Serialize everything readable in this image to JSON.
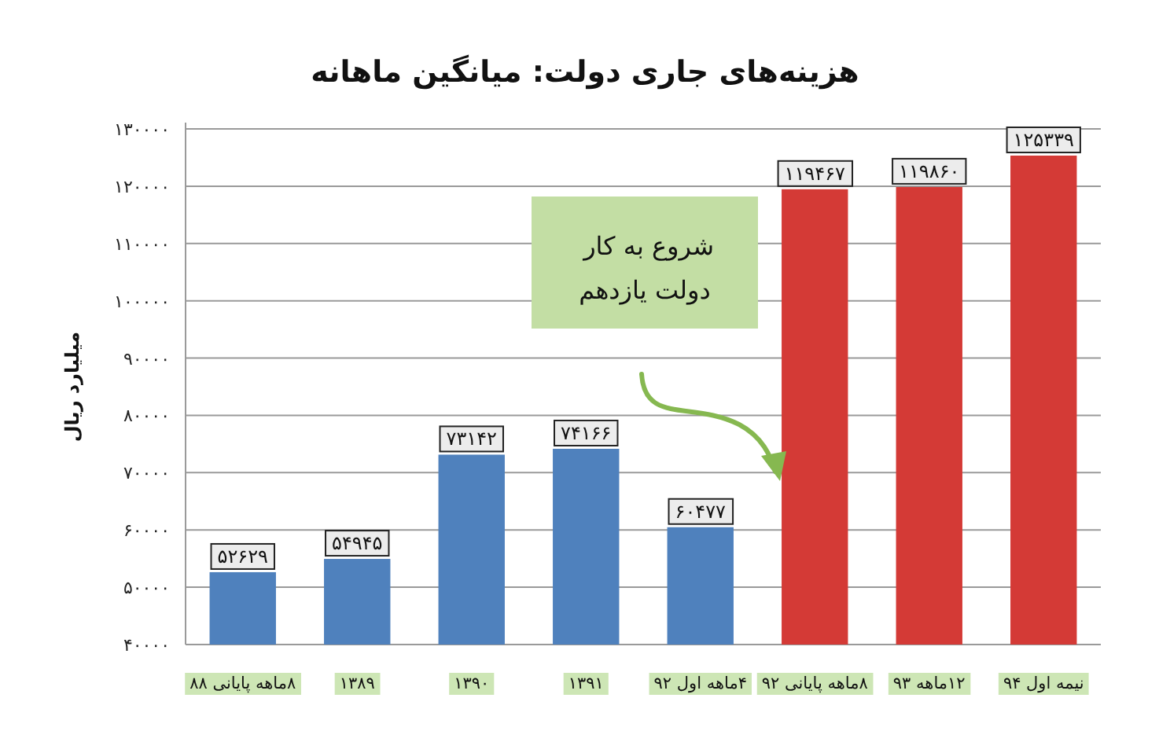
{
  "chart_data": {
    "type": "bar",
    "title": "هزینه‌های جاری دولت: میانگین ماهانه",
    "ylabel": "میلیارد ریال",
    "categories": [
      "۸ماهه پایانی ۸۸",
      "۱۳۸۹",
      "۱۳۹۰",
      "۱۳۹۱",
      "۴ماهه اول ۹۲",
      "۸ماهه پایانی ۹۲",
      "۱۲ماهه ۹۳",
      "نیمه اول ۹۴"
    ],
    "values": [
      52629,
      54945,
      73142,
      74166,
      60477,
      119467,
      119860,
      125339
    ],
    "value_labels": [
      "۵۲۶۲۹",
      "۵۴۹۴۵",
      "۷۳۱۴۲",
      "۷۴۱۶۶",
      "۶۰۴۷۷",
      "۱۱۹۴۶۷",
      "۱۱۹۸۶۰",
      "۱۲۵۳۳۹"
    ],
    "colors": [
      "#4f81bd",
      "#4f81bd",
      "#4f81bd",
      "#4f81bd",
      "#4f81bd",
      "#d43a36",
      "#d43a36",
      "#d43a36"
    ],
    "ylim": [
      40000,
      130000
    ],
    "yticks": [
      {
        "value": 40000,
        "label": "۴۰۰۰۰"
      },
      {
        "value": 50000,
        "label": "۵۰۰۰۰"
      },
      {
        "value": 60000,
        "label": "۶۰۰۰۰"
      },
      {
        "value": 70000,
        "label": "۷۰۰۰۰"
      },
      {
        "value": 80000,
        "label": "۸۰۰۰۰"
      },
      {
        "value": 90000,
        "label": "۹۰۰۰۰"
      },
      {
        "value": 100000,
        "label": "۱۰۰۰۰۰"
      },
      {
        "value": 110000,
        "label": "۱۱۰۰۰۰"
      },
      {
        "value": 120000,
        "label": "۱۲۰۰۰۰"
      },
      {
        "value": 130000,
        "label": "۱۳۰۰۰۰"
      }
    ],
    "grid": "y",
    "annotations": [
      "شروع به کار دولت یازدهم"
    ]
  }
}
